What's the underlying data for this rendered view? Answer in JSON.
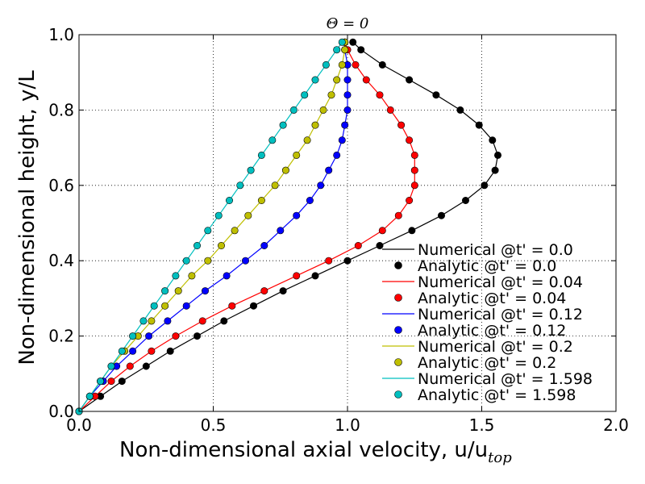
{
  "chart_data": {
    "type": "line",
    "title": "Θ = 0",
    "xlabel": "Non-dimensional axial velocity, u/u",
    "xlabel_sub": "top",
    "ylabel": "Non-dimensional height, y/L",
    "xlim": [
      0,
      2
    ],
    "ylim": [
      0,
      1
    ],
    "xticks": [
      "0.0",
      "0.5",
      "1.0",
      "1.5",
      "2.0"
    ],
    "yticks": [
      "0.0",
      "0.2",
      "0.4",
      "0.6",
      "0.8",
      "1.0"
    ],
    "grid": true,
    "legend_position": "lower-right",
    "y_samples": [
      0.0,
      0.04,
      0.08,
      0.12,
      0.16,
      0.2,
      0.24,
      0.28,
      0.32,
      0.36,
      0.4,
      0.44,
      0.48,
      0.52,
      0.56,
      0.6,
      0.64,
      0.68,
      0.72,
      0.76,
      0.8,
      0.84,
      0.88,
      0.92,
      0.96,
      0.98
    ],
    "series": [
      {
        "t": "0.0",
        "color": "#000000",
        "numerical_name": "Numerical @t' = 0.0",
        "analytic_name": "Analytic @t' = 0.0",
        "x": [
          0.0,
          0.08,
          0.16,
          0.25,
          0.34,
          0.44,
          0.54,
          0.65,
          0.76,
          0.88,
          1.0,
          1.12,
          1.24,
          1.35,
          1.44,
          1.51,
          1.55,
          1.56,
          1.54,
          1.49,
          1.42,
          1.33,
          1.23,
          1.13,
          1.05,
          1.02
        ]
      },
      {
        "t": "0.04",
        "color": "#ff0000",
        "numerical_name": "Numerical @t' = 0.04",
        "analytic_name": "Analytic @t' = 0.04",
        "x": [
          0.0,
          0.06,
          0.12,
          0.19,
          0.27,
          0.36,
          0.46,
          0.57,
          0.69,
          0.81,
          0.93,
          1.04,
          1.13,
          1.19,
          1.23,
          1.25,
          1.25,
          1.25,
          1.23,
          1.2,
          1.16,
          1.12,
          1.07,
          1.03,
          1.0,
          0.99
        ]
      },
      {
        "t": "0.12",
        "color": "#0000ff",
        "numerical_name": "Numerical @t' = 0.12",
        "analytic_name": "Analytic @t' = 0.12",
        "x": [
          0.0,
          0.04,
          0.09,
          0.14,
          0.2,
          0.26,
          0.33,
          0.4,
          0.47,
          0.55,
          0.62,
          0.69,
          0.75,
          0.81,
          0.86,
          0.9,
          0.93,
          0.96,
          0.98,
          0.99,
          1.0,
          1.0,
          1.0,
          1.0,
          0.99,
          0.99
        ]
      },
      {
        "t": "0.2",
        "color": "#bfbf00",
        "numerical_name": "Numerical @t' = 0.2",
        "analytic_name": "Analytic @t' = 0.2",
        "x": [
          0.0,
          0.04,
          0.08,
          0.12,
          0.17,
          0.22,
          0.27,
          0.32,
          0.37,
          0.42,
          0.48,
          0.53,
          0.58,
          0.63,
          0.68,
          0.73,
          0.77,
          0.81,
          0.85,
          0.88,
          0.91,
          0.94,
          0.96,
          0.98,
          0.99,
          0.99
        ]
      },
      {
        "t": "1.598",
        "color": "#00bfbf",
        "numerical_name": "Numerical @t' = 1.598",
        "analytic_name": "Analytic @t' = 1.598",
        "x": [
          0.0,
          0.04,
          0.08,
          0.12,
          0.16,
          0.2,
          0.24,
          0.28,
          0.32,
          0.36,
          0.4,
          0.44,
          0.48,
          0.52,
          0.56,
          0.6,
          0.64,
          0.68,
          0.72,
          0.76,
          0.8,
          0.84,
          0.88,
          0.92,
          0.96,
          0.98
        ]
      }
    ]
  }
}
